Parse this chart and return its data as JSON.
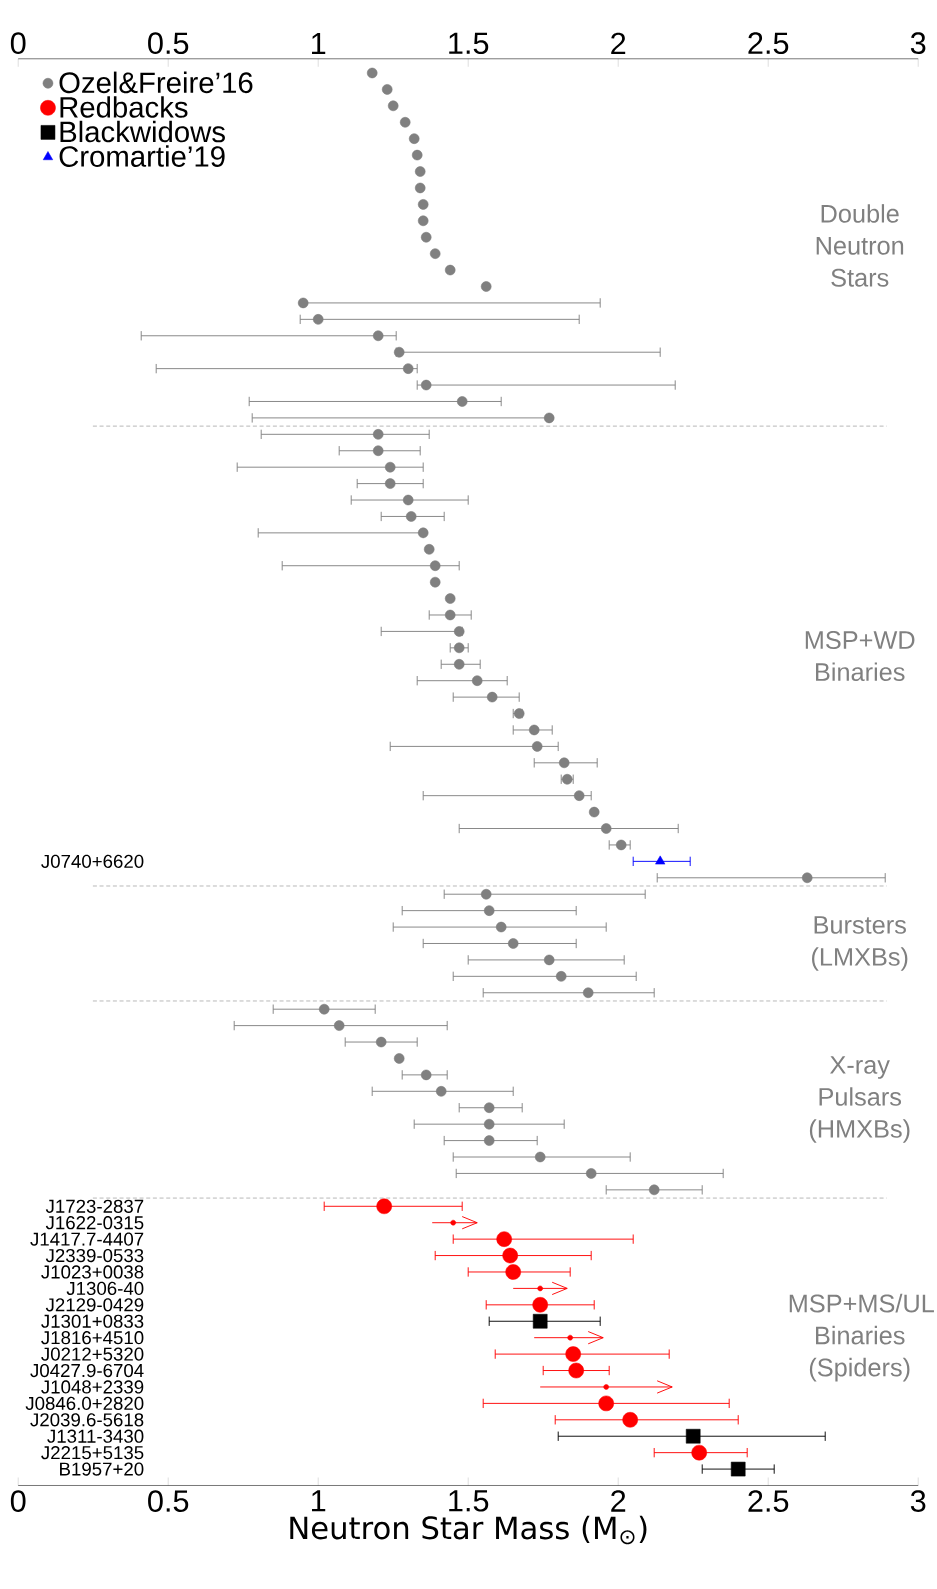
{
  "chart_data": {
    "type": "scatter",
    "orientation": "horizontal",
    "xlabel": "Neutron Star Mass (M$_{⊙}$)",
    "categories": [
      null,
      null,
      null,
      null,
      null,
      null,
      null,
      null,
      null,
      null,
      null,
      null,
      null,
      null,
      null,
      null,
      null,
      null,
      null,
      null,
      null,
      null,
      null,
      null,
      null,
      null,
      null,
      null,
      null,
      null,
      null,
      null,
      null,
      null,
      null,
      null,
      null,
      null,
      null,
      null,
      null,
      null,
      null,
      null,
      null,
      null,
      null,
      null,
      "J0740+6620",
      null,
      null,
      null,
      null,
      null,
      null,
      null,
      null,
      null,
      null,
      null,
      null,
      null,
      null,
      null,
      null,
      null,
      null,
      null,
      null,
      "J1723-2837",
      "J1622-0315",
      "J1417.7-4407",
      "J2339-0533",
      "J1023+0038",
      "J1306-40",
      "J2129-0429",
      "J1301+0833",
      "J1816+4510",
      "J0212+5320",
      "J0427.9-6704",
      "J1048+2339",
      "J0846.0+2820",
      "J2039.6-5618",
      "J1311-3430",
      "J2215+5135",
      "B1957+20"
    ],
    "xlim": [
      0,
      3
    ],
    "xticks": [
      0,
      0.5,
      1,
      1.5,
      2,
      2.5,
      3
    ],
    "x2lim": [
      0,
      3
    ],
    "x2ticks": [
      0,
      0.5,
      1,
      1.5,
      2,
      2.5,
      3
    ],
    "legend": "top left",
    "series": [
      {
        "name": "Ozel&Freire’16",
        "color": "#808080",
        "marker": "circle",
        "values": [
          1.18,
          1.23,
          1.25,
          1.29,
          1.32,
          1.33,
          1.34,
          1.34,
          1.35,
          1.35,
          1.36,
          1.39,
          1.44,
          1.56,
          0.95,
          1.0,
          1.2,
          1.27,
          1.3,
          1.36,
          1.48,
          1.77,
          1.2,
          1.2,
          1.24,
          1.24,
          1.3,
          1.31,
          1.35,
          1.37,
          1.39,
          1.39,
          1.44,
          1.44,
          1.47,
          1.47,
          1.47,
          1.53,
          1.58,
          1.67,
          1.72,
          1.73,
          1.82,
          1.83,
          1.87,
          1.92,
          1.96,
          2.01,
          null,
          2.63,
          1.56,
          1.57,
          1.61,
          1.65,
          1.77,
          1.81,
          1.9,
          1.02,
          1.07,
          1.21,
          1.27,
          1.36,
          1.41,
          1.57,
          1.57,
          1.57,
          1.74,
          1.91,
          2.12,
          null,
          null,
          null,
          null,
          null,
          null,
          null,
          null,
          null,
          null,
          null,
          null,
          null,
          null,
          null,
          null,
          null
        ],
        "errors": [
          null,
          null,
          null,
          null,
          null,
          null,
          null,
          null,
          null,
          null,
          null,
          null,
          null,
          null,
          [
            0.95,
            1.94
          ],
          [
            0.94,
            1.87
          ],
          [
            0.41,
            1.26
          ],
          [
            1.26,
            2.14
          ],
          [
            0.46,
            1.33
          ],
          [
            1.33,
            2.19
          ],
          [
            0.77,
            1.61
          ],
          [
            0.78,
            1.77
          ],
          [
            0.81,
            1.37
          ],
          [
            1.07,
            1.34
          ],
          [
            0.73,
            1.35
          ],
          [
            1.13,
            1.35
          ],
          [
            1.11,
            1.5
          ],
          [
            1.21,
            1.42
          ],
          [
            0.8,
            1.35
          ],
          null,
          [
            0.88,
            1.47
          ],
          null,
          null,
          [
            1.37,
            1.51
          ],
          [
            1.21,
            1.48
          ],
          [
            1.44,
            1.5
          ],
          [
            1.41,
            1.54
          ],
          [
            1.33,
            1.63
          ],
          [
            1.45,
            1.67
          ],
          [
            1.65,
            1.68
          ],
          [
            1.65,
            1.78
          ],
          [
            1.24,
            1.8
          ],
          [
            1.72,
            1.93
          ],
          [
            1.81,
            1.85
          ],
          [
            1.35,
            1.91
          ],
          null,
          [
            1.47,
            2.2
          ],
          [
            1.97,
            2.04
          ],
          null,
          [
            2.13,
            2.89
          ],
          [
            1.42,
            2.09
          ],
          [
            1.28,
            1.86
          ],
          [
            1.25,
            1.96
          ],
          [
            1.35,
            1.86
          ],
          [
            1.5,
            2.02
          ],
          [
            1.45,
            2.06
          ],
          [
            1.55,
            2.12
          ],
          [
            0.85,
            1.19
          ],
          [
            0.72,
            1.43
          ],
          [
            1.09,
            1.33
          ],
          null,
          [
            1.28,
            1.43
          ],
          [
            1.18,
            1.65
          ],
          [
            1.47,
            1.68
          ],
          [
            1.32,
            1.82
          ],
          [
            1.42,
            1.73
          ],
          [
            1.45,
            2.04
          ],
          [
            1.46,
            2.35
          ],
          [
            1.96,
            2.28
          ],
          null,
          null,
          null,
          null,
          null,
          null,
          null,
          null,
          null,
          null,
          null,
          null,
          null,
          null,
          null,
          null,
          null
        ]
      },
      {
        "name": "Redbacks",
        "color": "#ff0000",
        "marker": "circle",
        "values": [
          null,
          null,
          null,
          null,
          null,
          null,
          null,
          null,
          null,
          null,
          null,
          null,
          null,
          null,
          null,
          null,
          null,
          null,
          null,
          null,
          null,
          null,
          null,
          null,
          null,
          null,
          null,
          null,
          null,
          null,
          null,
          null,
          null,
          null,
          null,
          null,
          null,
          null,
          null,
          null,
          null,
          null,
          null,
          null,
          null,
          null,
          null,
          null,
          null,
          null,
          null,
          null,
          null,
          null,
          null,
          null,
          null,
          null,
          null,
          null,
          null,
          null,
          null,
          null,
          null,
          null,
          null,
          null,
          null,
          1.22,
          null,
          1.62,
          1.64,
          1.65,
          null,
          1.74,
          null,
          null,
          1.85,
          1.86,
          null,
          1.96,
          2.04,
          null,
          2.27,
          null
        ],
        "errors": [
          null,
          null,
          null,
          null,
          null,
          null,
          null,
          null,
          null,
          null,
          null,
          null,
          null,
          null,
          null,
          null,
          null,
          null,
          null,
          null,
          null,
          null,
          null,
          null,
          null,
          null,
          null,
          null,
          null,
          null,
          null,
          null,
          null,
          null,
          null,
          null,
          null,
          null,
          null,
          null,
          null,
          null,
          null,
          null,
          null,
          null,
          null,
          null,
          null,
          null,
          null,
          null,
          null,
          null,
          null,
          null,
          null,
          null,
          null,
          null,
          null,
          null,
          null,
          null,
          null,
          null,
          null,
          null,
          null,
          [
            1.02,
            1.48
          ],
          null,
          [
            1.45,
            2.05
          ],
          [
            1.39,
            1.91
          ],
          [
            1.5,
            1.84
          ],
          null,
          [
            1.56,
            1.92
          ],
          null,
          null,
          [
            1.59,
            2.17
          ],
          [
            1.75,
            1.97
          ],
          null,
          [
            1.55,
            2.37
          ],
          [
            1.79,
            2.4
          ],
          null,
          [
            2.12,
            2.43
          ],
          null
        ]
      },
      {
        "name": "Blackwidows",
        "color": "#000000",
        "marker": "square",
        "values": [
          null,
          null,
          null,
          null,
          null,
          null,
          null,
          null,
          null,
          null,
          null,
          null,
          null,
          null,
          null,
          null,
          null,
          null,
          null,
          null,
          null,
          null,
          null,
          null,
          null,
          null,
          null,
          null,
          null,
          null,
          null,
          null,
          null,
          null,
          null,
          null,
          null,
          null,
          null,
          null,
          null,
          null,
          null,
          null,
          null,
          null,
          null,
          null,
          null,
          null,
          null,
          null,
          null,
          null,
          null,
          null,
          null,
          null,
          null,
          null,
          null,
          null,
          null,
          null,
          null,
          null,
          null,
          null,
          null,
          null,
          null,
          null,
          null,
          null,
          null,
          null,
          1.74,
          null,
          null,
          null,
          null,
          null,
          null,
          2.25,
          null,
          2.4
        ],
        "errors": [
          null,
          null,
          null,
          null,
          null,
          null,
          null,
          null,
          null,
          null,
          null,
          null,
          null,
          null,
          null,
          null,
          null,
          null,
          null,
          null,
          null,
          null,
          null,
          null,
          null,
          null,
          null,
          null,
          null,
          null,
          null,
          null,
          null,
          null,
          null,
          null,
          null,
          null,
          null,
          null,
          null,
          null,
          null,
          null,
          null,
          null,
          null,
          null,
          null,
          null,
          null,
          null,
          null,
          null,
          null,
          null,
          null,
          null,
          null,
          null,
          null,
          null,
          null,
          null,
          null,
          null,
          null,
          null,
          null,
          null,
          null,
          null,
          null,
          null,
          null,
          null,
          [
            1.57,
            1.94
          ],
          null,
          null,
          null,
          null,
          null,
          null,
          [
            1.8,
            2.69
          ],
          null,
          [
            2.28,
            2.52
          ]
        ]
      },
      {
        "name": "Cromartie’19",
        "color": "#0000ff",
        "marker": "triangle",
        "values": [
          null,
          null,
          null,
          null,
          null,
          null,
          null,
          null,
          null,
          null,
          null,
          null,
          null,
          null,
          null,
          null,
          null,
          null,
          null,
          null,
          null,
          null,
          null,
          null,
          null,
          null,
          null,
          null,
          null,
          null,
          null,
          null,
          null,
          null,
          null,
          null,
          null,
          null,
          null,
          null,
          null,
          null,
          null,
          null,
          null,
          null,
          null,
          null,
          2.14,
          null,
          null,
          null,
          null,
          null,
          null,
          null,
          null,
          null,
          null,
          null,
          null,
          null,
          null,
          null,
          null,
          null,
          null,
          null,
          null,
          null,
          null,
          null,
          null,
          null,
          null,
          null,
          null,
          null,
          null,
          null,
          null,
          null,
          null,
          null,
          null,
          null
        ],
        "errors": [
          null,
          null,
          null,
          null,
          null,
          null,
          null,
          null,
          null,
          null,
          null,
          null,
          null,
          null,
          null,
          null,
          null,
          null,
          null,
          null,
          null,
          null,
          null,
          null,
          null,
          null,
          null,
          null,
          null,
          null,
          null,
          null,
          null,
          null,
          null,
          null,
          null,
          null,
          null,
          null,
          null,
          null,
          null,
          null,
          null,
          null,
          null,
          null,
          [
            2.05,
            2.24
          ],
          null,
          null,
          null,
          null,
          null,
          null,
          null,
          null,
          null,
          null,
          null,
          null,
          null,
          null,
          null,
          null,
          null,
          null,
          null,
          null,
          null,
          null,
          null,
          null,
          null,
          null,
          null,
          null,
          null,
          null,
          null,
          null,
          null,
          null,
          null,
          null,
          null
        ]
      },
      {
        "color": "#ff0000",
        "marker": "circle",
        "values": [
          null,
          null,
          null,
          null,
          null,
          null,
          null,
          null,
          null,
          null,
          null,
          null,
          null,
          null,
          null,
          null,
          null,
          null,
          null,
          null,
          null,
          null,
          null,
          null,
          null,
          null,
          null,
          null,
          null,
          null,
          null,
          null,
          null,
          null,
          null,
          null,
          null,
          null,
          null,
          null,
          null,
          null,
          null,
          null,
          null,
          null,
          null,
          null,
          null,
          null,
          null,
          null,
          null,
          null,
          null,
          null,
          null,
          null,
          null,
          null,
          null,
          null,
          null,
          null,
          null,
          null,
          null,
          null,
          null,
          null,
          1.45,
          null,
          null,
          null,
          1.74,
          null,
          null,
          1.84,
          null,
          null,
          1.96,
          null,
          null,
          null,
          null,
          null
        ],
        "errors": [
          null,
          null,
          null,
          null,
          null,
          null,
          null,
          null,
          null,
          null,
          null,
          null,
          null,
          null,
          null,
          null,
          null,
          null,
          null,
          null,
          null,
          null,
          null,
          null,
          null,
          null,
          null,
          null,
          null,
          null,
          null,
          null,
          null,
          null,
          null,
          null,
          null,
          null,
          null,
          null,
          null,
          null,
          null,
          null,
          null,
          null,
          null,
          null,
          null,
          null,
          null,
          null,
          null,
          null,
          null,
          null,
          null,
          null,
          null,
          null,
          null,
          null,
          null,
          null,
          null,
          null,
          null,
          null,
          null,
          null,
          [
            1.38,
            1.53
          ],
          null,
          null,
          null,
          [
            1.65,
            1.83
          ],
          null,
          null,
          [
            1.72,
            1.95
          ],
          null,
          null,
          [
            1.74,
            2.18
          ],
          null,
          null,
          null,
          null,
          null
        ]
      }
    ],
    "annotations": [
      "Double Neutron Stars",
      "MSP+WD Binaries",
      "Bursters (LMXBs)",
      "X-ray Pulsars (HMXBs)",
      "MSP+MS/UL Binaries (Spiders)"
    ]
  }
}
